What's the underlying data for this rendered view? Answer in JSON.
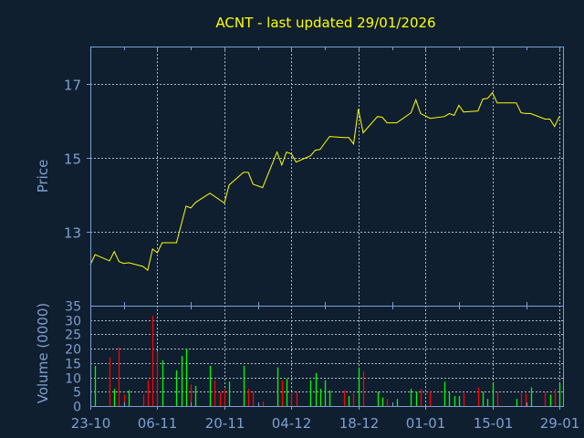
{
  "chart_data": [
    {
      "type": "line",
      "title": "ACNT - last updated 29/01/2026",
      "ylabel": "Price",
      "ylim": [
        11,
        18
      ],
      "yticks": [
        13,
        15,
        17
      ],
      "grid": true,
      "line_color": "#ffff00",
      "points": [
        [
          "2025-10-23",
          12.11
        ],
        [
          "2025-10-24",
          12.38
        ],
        [
          "2025-10-27",
          12.21
        ],
        [
          "2025-10-28",
          12.46
        ],
        [
          "2025-10-29",
          12.19
        ],
        [
          "2025-10-30",
          12.14
        ],
        [
          "2025-10-31",
          12.16
        ],
        [
          "2025-11-03",
          12.06
        ],
        [
          "2025-11-04",
          11.96
        ],
        [
          "2025-11-05",
          12.53
        ],
        [
          "2025-11-06",
          12.43
        ],
        [
          "2025-11-07",
          12.7
        ],
        [
          "2025-11-10",
          12.7
        ],
        [
          "2025-11-12",
          13.69
        ],
        [
          "2025-11-13",
          13.64
        ],
        [
          "2025-11-14",
          13.79
        ],
        [
          "2025-11-17",
          14.04
        ],
        [
          "2025-11-20",
          13.77
        ],
        [
          "2025-11-21",
          14.26
        ],
        [
          "2025-11-24",
          14.6
        ],
        [
          "2025-11-25",
          14.6
        ],
        [
          "2025-11-26",
          14.28
        ],
        [
          "2025-11-28",
          14.19
        ],
        [
          "2025-12-01",
          15.15
        ],
        [
          "2025-12-02",
          14.8
        ],
        [
          "2025-12-03",
          15.15
        ],
        [
          "2025-12-04",
          15.1
        ],
        [
          "2025-12-05",
          14.88
        ],
        [
          "2025-12-08",
          15.05
        ],
        [
          "2025-12-09",
          15.2
        ],
        [
          "2025-12-10",
          15.22
        ],
        [
          "2025-12-11",
          15.4
        ],
        [
          "2025-12-12",
          15.57
        ],
        [
          "2025-12-15",
          15.54
        ],
        [
          "2025-12-16",
          15.54
        ],
        [
          "2025-12-17",
          15.37
        ],
        [
          "2025-12-18",
          16.31
        ],
        [
          "2025-12-19",
          15.67
        ],
        [
          "2025-12-22",
          16.11
        ],
        [
          "2025-12-23",
          16.09
        ],
        [
          "2025-12-24",
          15.94
        ],
        [
          "2025-12-26",
          15.94
        ],
        [
          "2025-12-29",
          16.21
        ],
        [
          "2025-12-30",
          16.56
        ],
        [
          "2025-12-31",
          16.19
        ],
        [
          "2026-01-02",
          16.06
        ],
        [
          "2026-01-05",
          16.11
        ],
        [
          "2026-01-06",
          16.19
        ],
        [
          "2026-01-07",
          16.14
        ],
        [
          "2026-01-08",
          16.41
        ],
        [
          "2026-01-09",
          16.23
        ],
        [
          "2026-01-12",
          16.26
        ],
        [
          "2026-01-13",
          16.58
        ],
        [
          "2026-01-14",
          16.6
        ],
        [
          "2026-01-15",
          16.75
        ],
        [
          "2026-01-16",
          16.48
        ],
        [
          "2026-01-20",
          16.48
        ],
        [
          "2026-01-21",
          16.21
        ],
        [
          "2026-01-22",
          16.19
        ],
        [
          "2026-01-23",
          16.19
        ],
        [
          "2026-01-26",
          16.04
        ],
        [
          "2026-01-27",
          16.04
        ],
        [
          "2026-01-28",
          15.84
        ],
        [
          "2026-01-29",
          16.11
        ]
      ]
    },
    {
      "type": "bar",
      "ylabel": "Volume (0000)",
      "ylim": [
        0,
        35
      ],
      "yticks": [
        0,
        5,
        10,
        15,
        20,
        25,
        30,
        35
      ],
      "grid": true,
      "up_color": "#00ff00",
      "down_color": "#ff0000",
      "bars": [
        [
          "2025-10-24",
          14,
          "up"
        ],
        [
          "2025-10-27",
          17,
          "down"
        ],
        [
          "2025-10-28",
          6,
          "up"
        ],
        [
          "2025-10-29",
          20.5,
          "down"
        ],
        [
          "2025-10-30",
          4,
          "down"
        ],
        [
          "2025-10-31",
          5.5,
          "up"
        ],
        [
          "2025-11-03",
          4,
          "down"
        ],
        [
          "2025-11-04",
          9,
          "down"
        ],
        [
          "2025-11-05",
          31.5,
          "down"
        ],
        [
          "2025-11-06",
          19,
          "down"
        ],
        [
          "2025-11-07",
          16,
          "up"
        ],
        [
          "2025-11-10",
          12.5,
          "up"
        ],
        [
          "2025-11-11",
          17.5,
          "up"
        ],
        [
          "2025-11-12",
          20,
          "up"
        ],
        [
          "2025-11-13",
          7.5,
          "down"
        ],
        [
          "2025-11-14",
          7,
          "up"
        ],
        [
          "2025-11-17",
          14,
          "up"
        ],
        [
          "2025-11-18",
          9,
          "down"
        ],
        [
          "2025-11-19",
          5,
          "down"
        ],
        [
          "2025-11-20",
          6,
          "down"
        ],
        [
          "2025-11-21",
          8.5,
          "up"
        ],
        [
          "2025-11-24",
          14,
          "up"
        ],
        [
          "2025-11-25",
          6,
          "down"
        ],
        [
          "2025-11-26",
          5,
          "down"
        ],
        [
          "2025-11-28",
          1.5,
          "down"
        ],
        [
          "2025-12-01",
          13.5,
          "up"
        ],
        [
          "2025-12-02",
          9,
          "down"
        ],
        [
          "2025-12-03",
          9.5,
          "up"
        ],
        [
          "2025-12-04",
          4.5,
          "down"
        ],
        [
          "2025-12-05",
          5,
          "down"
        ],
        [
          "2025-12-08",
          9,
          "up"
        ],
        [
          "2025-12-09",
          11.5,
          "up"
        ],
        [
          "2025-12-10",
          6,
          "up"
        ],
        [
          "2025-12-11",
          9,
          "up"
        ],
        [
          "2025-12-12",
          5.5,
          "up"
        ],
        [
          "2025-12-15",
          5.5,
          "down"
        ],
        [
          "2025-12-16",
          3.5,
          "up"
        ],
        [
          "2025-12-17",
          4.5,
          "down"
        ],
        [
          "2025-12-18",
          13.5,
          "up"
        ],
        [
          "2025-12-19",
          12,
          "down"
        ],
        [
          "2025-12-22",
          5,
          "up"
        ],
        [
          "2025-12-23",
          3,
          "up"
        ],
        [
          "2025-12-24",
          2.5,
          "down"
        ],
        [
          "2025-12-26",
          2.5,
          "up"
        ],
        [
          "2025-12-29",
          6,
          "up"
        ],
        [
          "2025-12-30",
          5,
          "up"
        ],
        [
          "2025-12-31",
          6,
          "down"
        ],
        [
          "2026-01-02",
          5,
          "down"
        ],
        [
          "2026-01-05",
          8.5,
          "up"
        ],
        [
          "2026-01-06",
          5,
          "up"
        ],
        [
          "2026-01-07",
          3.5,
          "up"
        ],
        [
          "2026-01-08",
          3.5,
          "up"
        ],
        [
          "2026-01-09",
          4.5,
          "down"
        ],
        [
          "2026-01-12",
          6.5,
          "down"
        ],
        [
          "2026-01-13",
          5,
          "up"
        ],
        [
          "2026-01-14",
          2.5,
          "up"
        ],
        [
          "2026-01-15",
          8,
          "up"
        ],
        [
          "2026-01-16",
          5,
          "down"
        ],
        [
          "2026-01-20",
          2.5,
          "up"
        ],
        [
          "2026-01-21",
          4.5,
          "down"
        ],
        [
          "2026-01-22",
          4.5,
          "down"
        ],
        [
          "2026-01-23",
          6.5,
          "up"
        ],
        [
          "2026-01-26",
          5,
          "down"
        ],
        [
          "2026-01-27",
          4,
          "up"
        ],
        [
          "2026-01-28",
          6,
          "down"
        ],
        [
          "2026-01-29",
          8,
          "up"
        ]
      ]
    }
  ],
  "x_axis": {
    "range": [
      "2025-10-23",
      "2026-01-29"
    ],
    "ticks": [
      {
        "date": "2025-10-23",
        "label": "23-10"
      },
      {
        "date": "2025-11-06",
        "label": "06-11"
      },
      {
        "date": "2025-11-20",
        "label": "20-11"
      },
      {
        "date": "2025-12-04",
        "label": "04-12"
      },
      {
        "date": "2025-12-18",
        "label": "18-12"
      },
      {
        "date": "2026-01-01",
        "label": "01-01"
      },
      {
        "date": "2026-01-15",
        "label": "15-01"
      },
      {
        "date": "2026-01-29",
        "label": "29-01"
      }
    ]
  },
  "colors": {
    "background": "#0f1f30",
    "axis": "#7f9fcf",
    "grid": "#b0b8c8",
    "title": "#ffff00"
  }
}
